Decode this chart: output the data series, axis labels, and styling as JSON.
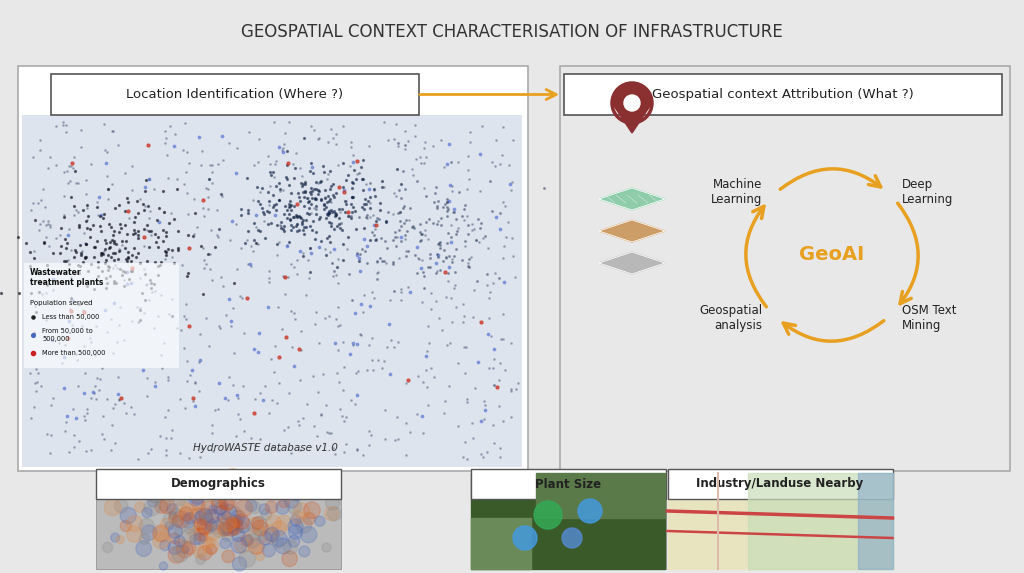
{
  "title": "GEOSPATIAL CONTEXT CHARACTERISATION OF INFRASTRUCTURE",
  "title_fontsize": 12,
  "title_color": "#333333",
  "bg_color": "#e8e8e8",
  "label_location": "Location Identification (Where ?)",
  "label_attribution": "Geospatial context Attribution (What ?)",
  "geoai_color": "#E8A020",
  "geoai_text": "GeoAI",
  "cycle_labels": [
    "Machine\nLearning",
    "Deep\nLearning",
    "OSM Text\nMining",
    "Geospatial\nanalysis"
  ],
  "bottom_labels": [
    "Demographics",
    "Plant Size",
    "Industry/Landuse Nearby"
  ],
  "arrow_color": "#E8A020",
  "text_color": "#222222",
  "hydro_text": "HydroWASTE database v1.0",
  "legend_title": "Wastewater\ntreatment plants",
  "legend_sub": "Population served",
  "legend_items": [
    "Less than 50,000",
    "From 50,000 to\n500,000",
    "More than 500,000"
  ],
  "legend_colors": [
    "#222222",
    "#4466bb",
    "#cc2222"
  ],
  "layer_colors": [
    "#7ec8a0",
    "#c89050",
    "#b0b0b0"
  ],
  "pin_color": "#8B3030"
}
